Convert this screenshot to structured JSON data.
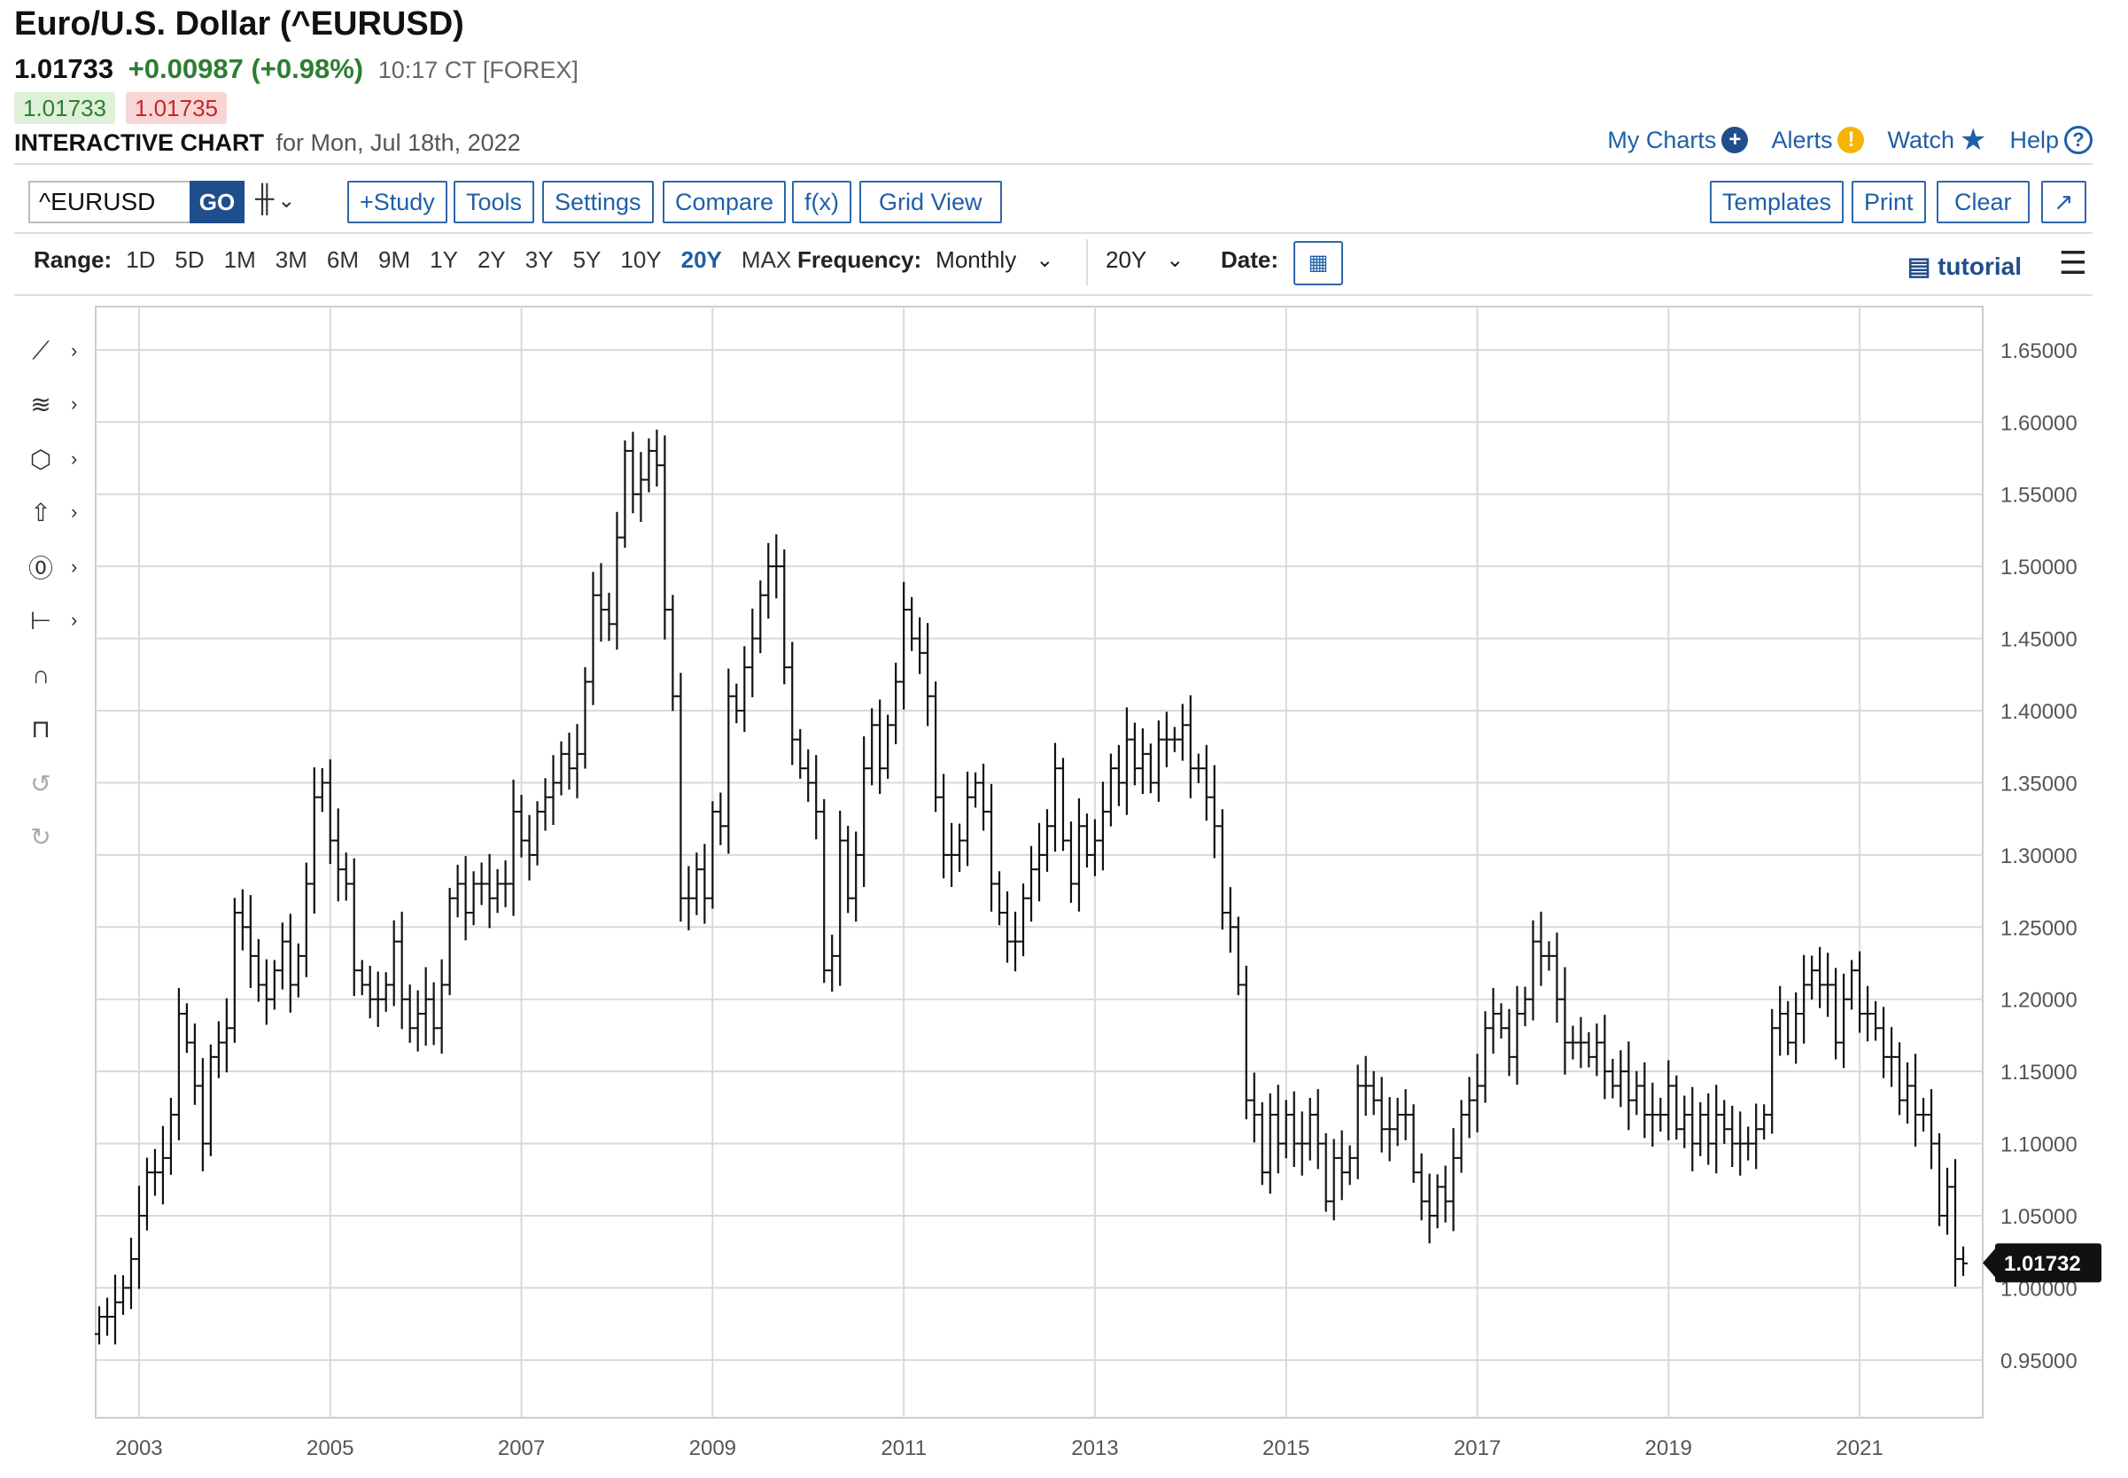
{
  "header": {
    "title": "Euro/U.S. Dollar (^EURUSD)",
    "last": "1.01733",
    "change": "+0.00987 (+0.98%)",
    "time_exchange": "10:17 CT [FOREX]",
    "bid": "1.01733",
    "ask": "1.01735",
    "subtitle_bold": "INTERACTIVE CHART",
    "subtitle_date": "for Mon, Jul 18th, 2022"
  },
  "top_links": {
    "my_charts": "My Charts",
    "alerts": "Alerts",
    "watch": "Watch",
    "help": "Help"
  },
  "toolbar": {
    "symbol_value": "^EURUSD",
    "go": "GO",
    "study": "+Study",
    "tools": "Tools",
    "settings": "Settings",
    "compare": "Compare",
    "fx": "f(x)",
    "grid_view": "Grid View",
    "templates": "Templates",
    "print": "Print",
    "clear": "Clear"
  },
  "range_row": {
    "range_label": "Range:",
    "ranges": [
      "1D",
      "5D",
      "1M",
      "3M",
      "6M",
      "9M",
      "1Y",
      "2Y",
      "3Y",
      "5Y",
      "10Y",
      "20Y",
      "MAX"
    ],
    "active_range": "20Y",
    "frequency_label": "Frequency:",
    "frequency_value": "Monthly",
    "period_value": "20Y",
    "date_label": "Date:",
    "tutorial": "tutorial"
  },
  "left_tools": [
    "trendline-tool",
    "fib-tool",
    "shapes-tool",
    "arrow-tool",
    "annotation-tool",
    "measure-tool",
    "magnet-tool",
    "lock-tool",
    "undo-tool",
    "redo-tool"
  ],
  "colors": {
    "link_blue": "#1f5fa8",
    "brand_navy": "#1f4e8c",
    "up_green": "#2e7d32",
    "down_red": "#c62828",
    "bar_color": "#111111",
    "grid": "#d9d9d9"
  },
  "chart_data": {
    "type": "ohlc",
    "frequency": "monthly",
    "ylim": [
      0.91,
      1.68
    ],
    "y_ticks": [
      "0.95000",
      "1.00000",
      "1.05000",
      "1.10000",
      "1.15000",
      "1.20000",
      "1.25000",
      "1.30000",
      "1.35000",
      "1.40000",
      "1.45000",
      "1.50000",
      "1.55000",
      "1.60000",
      "1.65000"
    ],
    "x_ticks": [
      "2003",
      "2005",
      "2007",
      "2009",
      "2011",
      "2013",
      "2015",
      "2017",
      "2019",
      "2021"
    ],
    "x_start": "2002-08",
    "last_value_label": "1.01732",
    "monthly_closes": [
      0.98,
      0.98,
      0.99,
      1.0,
      1.02,
      1.05,
      1.08,
      1.08,
      1.09,
      1.12,
      1.19,
      1.17,
      1.14,
      1.1,
      1.16,
      1.17,
      1.18,
      1.26,
      1.25,
      1.23,
      1.21,
      1.2,
      1.22,
      1.24,
      1.21,
      1.23,
      1.28,
      1.34,
      1.35,
      1.31,
      1.29,
      1.28,
      1.22,
      1.21,
      1.2,
      1.2,
      1.21,
      1.24,
      1.2,
      1.18,
      1.19,
      1.2,
      1.18,
      1.21,
      1.27,
      1.28,
      1.26,
      1.28,
      1.28,
      1.27,
      1.28,
      1.28,
      1.33,
      1.31,
      1.3,
      1.33,
      1.34,
      1.35,
      1.37,
      1.36,
      1.37,
      1.42,
      1.48,
      1.47,
      1.46,
      1.52,
      1.58,
      1.55,
      1.56,
      1.58,
      1.57,
      1.47,
      1.41,
      1.27,
      1.27,
      1.29,
      1.27,
      1.33,
      1.32,
      1.41,
      1.4,
      1.43,
      1.45,
      1.48,
      1.5,
      1.5,
      1.43,
      1.38,
      1.36,
      1.35,
      1.33,
      1.22,
      1.23,
      1.31,
      1.27,
      1.3,
      1.36,
      1.39,
      1.36,
      1.39,
      1.42,
      1.47,
      1.45,
      1.44,
      1.41,
      1.34,
      1.3,
      1.3,
      1.31,
      1.34,
      1.35,
      1.33,
      1.28,
      1.26,
      1.24,
      1.24,
      1.27,
      1.29,
      1.3,
      1.32,
      1.36,
      1.31,
      1.28,
      1.32,
      1.3,
      1.31,
      1.33,
      1.36,
      1.35,
      1.38,
      1.36,
      1.37,
      1.35,
      1.38,
      1.38,
      1.38,
      1.39,
      1.36,
      1.36,
      1.34,
      1.32,
      1.26,
      1.25,
      1.21,
      1.13,
      1.12,
      1.08,
      1.12,
      1.1,
      1.12,
      1.1,
      1.1,
      1.12,
      1.1,
      1.06,
      1.09,
      1.08,
      1.09,
      1.14,
      1.14,
      1.13,
      1.11,
      1.11,
      1.12,
      1.12,
      1.08,
      1.06,
      1.05,
      1.07,
      1.06,
      1.09,
      1.12,
      1.13,
      1.14,
      1.18,
      1.19,
      1.18,
      1.16,
      1.19,
      1.2,
      1.24,
      1.23,
      1.23,
      1.2,
      1.17,
      1.17,
      1.17,
      1.16,
      1.17,
      1.15,
      1.14,
      1.15,
      1.13,
      1.14,
      1.12,
      1.12,
      1.12,
      1.14,
      1.11,
      1.12,
      1.1,
      1.12,
      1.1,
      1.12,
      1.11,
      1.1,
      1.1,
      1.1,
      1.11,
      1.12,
      1.18,
      1.19,
      1.17,
      1.19,
      1.21,
      1.22,
      1.21,
      1.21,
      1.17,
      1.2,
      1.22,
      1.19,
      1.19,
      1.18,
      1.16,
      1.16,
      1.13,
      1.14,
      1.12,
      1.12,
      1.1,
      1.05,
      1.07,
      1.02,
      1.017
    ]
  }
}
